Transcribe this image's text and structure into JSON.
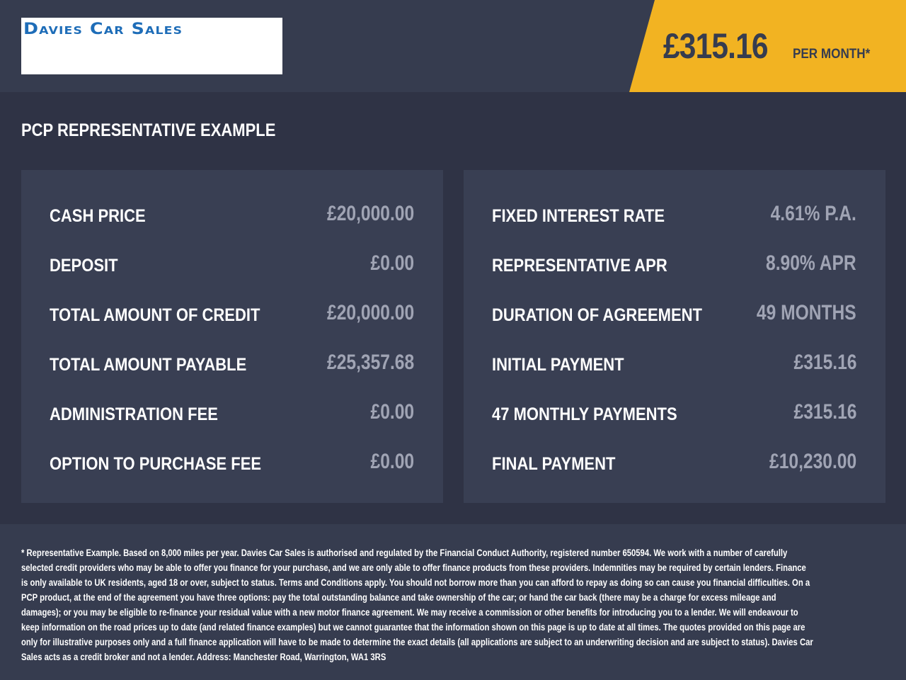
{
  "header": {
    "logo_text": "Davies Car Sales",
    "monthly_price": "£315.16",
    "per_month_label": "PER MONTH*",
    "accent_color": "#f2b322"
  },
  "title": "PCP REPRESENTATIVE EXAMPLE",
  "left_panel": [
    {
      "label": "CASH PRICE",
      "value": "£20,000.00"
    },
    {
      "label": "DEPOSIT",
      "value": "£0.00"
    },
    {
      "label": "TOTAL AMOUNT OF CREDIT",
      "value": "£20,000.00"
    },
    {
      "label": "TOTAL AMOUNT PAYABLE",
      "value": "£25,357.68"
    },
    {
      "label": "ADMINISTRATION FEE",
      "value": "£0.00"
    },
    {
      "label": "OPTION TO PURCHASE FEE",
      "value": "£0.00"
    }
  ],
  "right_panel": [
    {
      "label": "FIXED INTEREST RATE",
      "value": "4.61% P.A."
    },
    {
      "label": "REPRESENTATIVE APR",
      "value": "8.90% APR"
    },
    {
      "label": "DURATION OF AGREEMENT",
      "value": "49 MONTHS"
    },
    {
      "label": "INITIAL PAYMENT",
      "value": "£315.16"
    },
    {
      "label": "47 MONTHLY PAYMENTS",
      "value": "£315.16"
    },
    {
      "label": "FINAL PAYMENT",
      "value": "£10,230.00"
    }
  ],
  "footer": {
    "disclaimer": "* Representative Example. Based on 8,000 miles per year. Davies Car Sales  is authorised and regulated by the Financial Conduct Authority, registered number 650594. We work with a number of carefully selected credit providers who may be able to offer you finance for your purchase, and we are only able to offer finance products from these providers. Indemnities may be required by certain lenders. Finance is only available to UK residents, aged 18 or over, subject to status. Terms and Conditions apply. You should not borrow more than you can afford to repay as doing so can cause you financial difficulties. On a PCP product, at the end of the agreement you have three options: pay the total outstanding balance and take ownership of the car; or hand the car back (there may be a charge for excess mileage and damages); or you may be eligible to re-finance your residual value with a new motor finance agreement. We may receive a commission or other benefits for introducing you to a lender. We will endeavour to keep information on the road prices up to date (and related finance examples) but we cannot guarantee that the information shown on this page is up to date at all times. The quotes provided on this page are only for illustrative purposes only and a full finance application will have to be made to determine the exact details (all applications are subject to an underwriting decision and are subject to status). Davies Car Sales  acts as a credit broker and not a lender. Address: Manchester Road, Warrington, WA1 3RS"
  }
}
